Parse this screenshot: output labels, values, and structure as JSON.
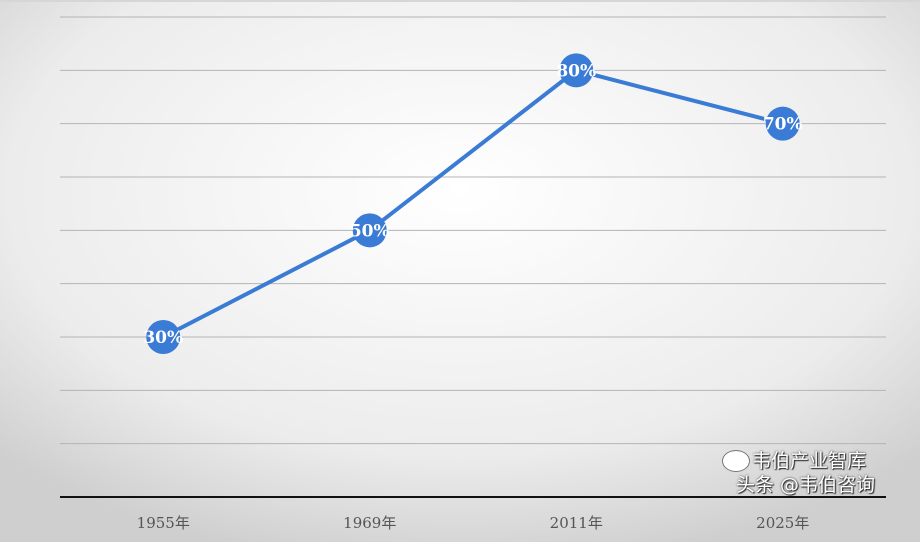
{
  "chart_data": {
    "type": "line",
    "title": "",
    "xlabel": "",
    "ylabel": "",
    "categories": [
      "1955年",
      "1969年",
      "2011年",
      "2025年"
    ],
    "series": [
      {
        "values": [
          30,
          50,
          80,
          70
        ],
        "labels": [
          "30%",
          "50%",
          "80%",
          "70%"
        ],
        "color": "#3a7bd5"
      }
    ],
    "ylim": [
      0,
      90
    ],
    "y_unit": "%",
    "grid": true,
    "y_tick_labels_shown": false,
    "legend": "none",
    "background": "radial gradient white to light gray"
  },
  "watermark": {
    "line1": "韦伯产业智库",
    "line2": "头条 @韦伯咨询"
  }
}
